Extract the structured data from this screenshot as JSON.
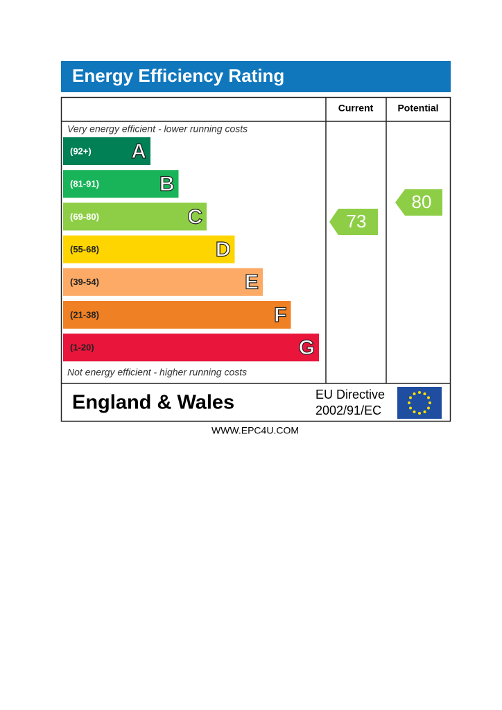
{
  "header": {
    "title": "Energy Efficiency Rating"
  },
  "columns": [
    "Current",
    "Potential"
  ],
  "top_note": "Very energy efficient - lower running costs",
  "bottom_note": "Not energy efficient - higher running costs",
  "bands": [
    {
      "range": "(92+)",
      "letter": "A",
      "color": "#008054"
    },
    {
      "range": "(81-91)",
      "letter": "B",
      "color": "#19b459"
    },
    {
      "range": "(69-80)",
      "letter": "C",
      "color": "#8dce46"
    },
    {
      "range": "(55-68)",
      "letter": "D",
      "color": "#ffd500"
    },
    {
      "range": "(39-54)",
      "letter": "E",
      "color": "#fcaa65"
    },
    {
      "range": "(21-38)",
      "letter": "F",
      "color": "#ef8023"
    },
    {
      "range": "(1-20)",
      "letter": "G",
      "color": "#e9153b"
    }
  ],
  "current": {
    "value": 73,
    "color": "#8dce46"
  },
  "potential": {
    "value": 80,
    "color": "#8dce46"
  },
  "footer": {
    "region": "England & Wales",
    "directive": [
      "EU Directive",
      "2002/91/EC"
    ]
  },
  "website": "WWW.EPC4U.COM"
}
